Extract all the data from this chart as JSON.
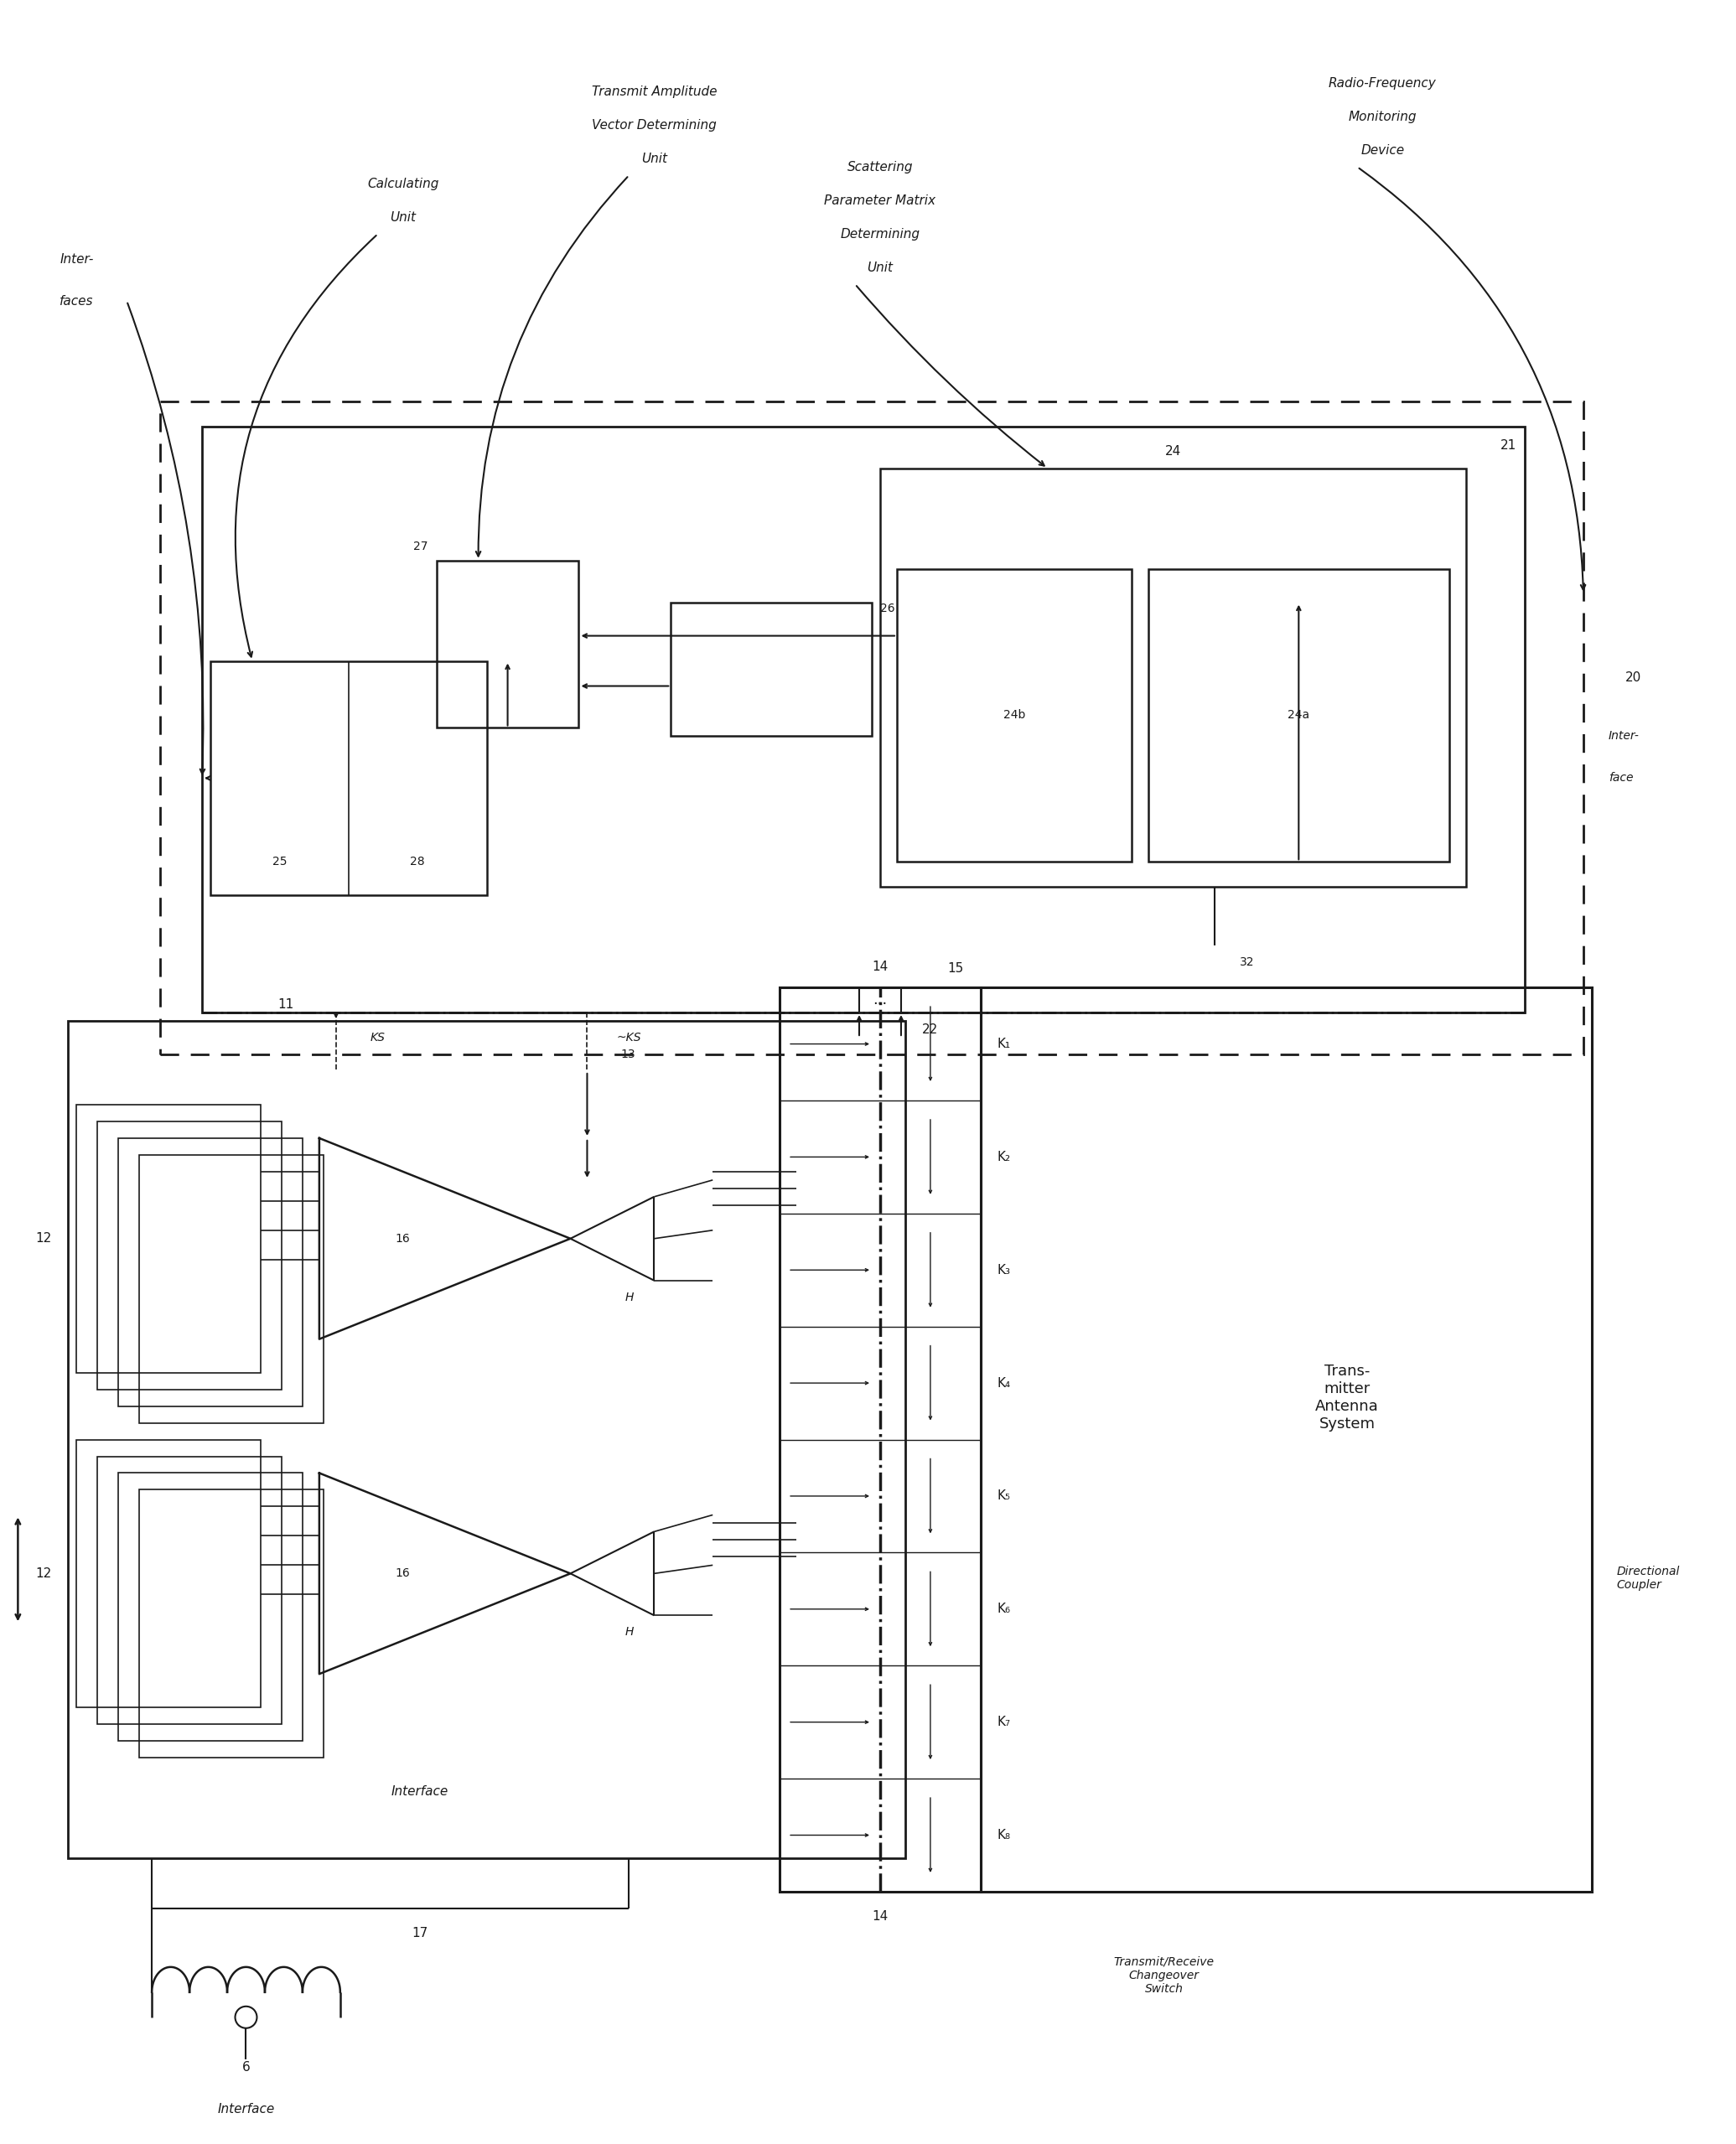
{
  "bg_color": "#ffffff",
  "line_color": "#1a1a1a",
  "fig_width": 20.71,
  "fig_height": 25.58,
  "coupler_rows": [
    "K₁",
    "K₂",
    "K₃",
    "K₄",
    "K₅",
    "K₆",
    "K₇",
    "K₈"
  ],
  "label_transmit_amp": "Transmit Amplitude\nVector Determining\nUnit",
  "label_scattering": "Scattering\nParameter Matrix\nDetermining\nUnit",
  "label_rf_monitoring": "Radio-Frequency\nMonitoring\nDevice",
  "label_calculating": "Calculating\nUnit",
  "label_interfaces": "Inter-\nfaces",
  "label_transmitter_antenna": "Trans-\nmitter\nAntenna\nSystem",
  "label_directional_coupler": "Directional\nCoupler",
  "label_tx_rx": "Transmit/Receive\nChangeover\nSwitch",
  "label_interface": "Interface",
  "label_interface_right": "Inter-\nface"
}
